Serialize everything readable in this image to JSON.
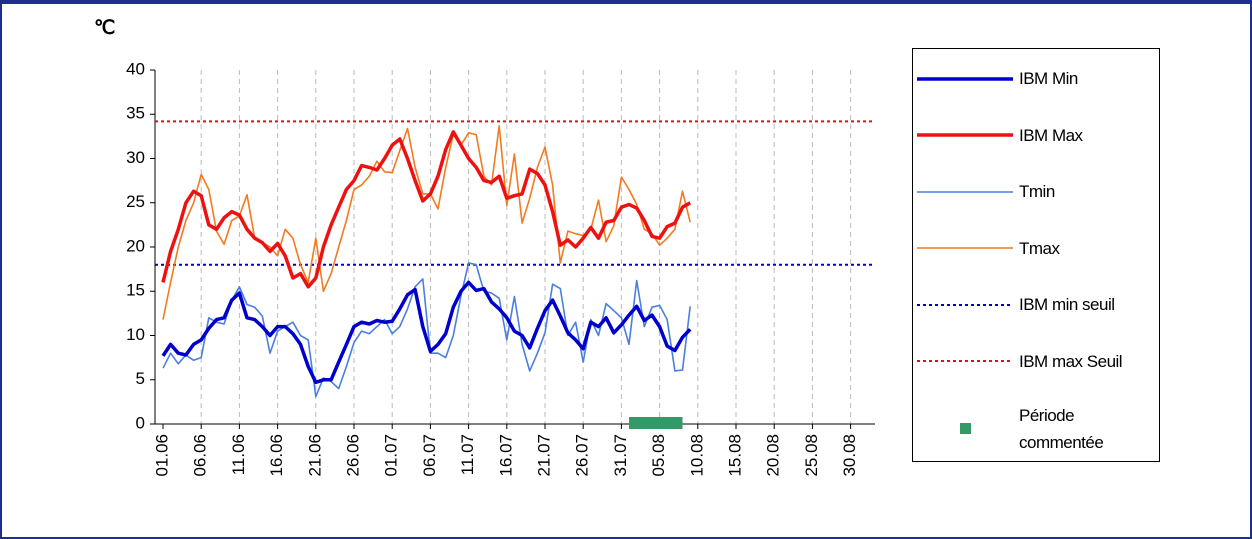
{
  "chart_data": {
    "type": "line",
    "y_label": "℃",
    "x": [
      "01.06",
      "02.06",
      "03.06",
      "04.06",
      "05.06",
      "06.06",
      "07.06",
      "08.06",
      "09.06",
      "10.06",
      "11.06",
      "12.06",
      "13.06",
      "14.06",
      "15.06",
      "16.06",
      "17.06",
      "18.06",
      "19.06",
      "20.06",
      "21.06",
      "22.06",
      "23.06",
      "24.06",
      "25.06",
      "26.06",
      "27.06",
      "28.06",
      "29.06",
      "30.06",
      "01.07",
      "02.07",
      "03.07",
      "04.07",
      "05.07",
      "06.07",
      "07.07",
      "08.07",
      "09.07",
      "10.07",
      "11.07",
      "12.07",
      "13.07",
      "14.07",
      "15.07",
      "16.07",
      "17.07",
      "18.07",
      "19.07",
      "20.07",
      "21.07",
      "22.07",
      "23.07",
      "24.07",
      "25.07",
      "26.07",
      "27.07",
      "28.07",
      "29.07",
      "30.07",
      "31.07",
      "01.08",
      "02.08",
      "03.08",
      "04.08",
      "05.08",
      "06.08",
      "07.08",
      "08.08",
      "09.08"
    ],
    "series": [
      {
        "name": "IBM Min",
        "color": "#0000cc",
        "style": "thick",
        "values": [
          7.7,
          9,
          8,
          7.8,
          9,
          9.5,
          10.8,
          11.8,
          12,
          14,
          14.8,
          12,
          11.8,
          11,
          10,
          11,
          11,
          10.2,
          9,
          6.5,
          4.7,
          5,
          5,
          7,
          9,
          11,
          11.5,
          11.3,
          11.7,
          11.5,
          11.6,
          13,
          14.6,
          15.2,
          11,
          8.2,
          9,
          10.2,
          13.2,
          15,
          16,
          15.1,
          15.3,
          13.8,
          13,
          12,
          10.5,
          10,
          8.6,
          10.8,
          12.8,
          14,
          12.2,
          10.3,
          9.5,
          8.5,
          11.5,
          11,
          12,
          10.3,
          11.2,
          12.3,
          13.3,
          11.7,
          12.3,
          11,
          8.8,
          8.3,
          9.8,
          10.7
        ]
      },
      {
        "name": "IBM Max",
        "color": "#ee1111",
        "style": "thick",
        "values": [
          16,
          19.5,
          22,
          25,
          26.3,
          25.8,
          22.5,
          22,
          23.3,
          24,
          23.6,
          22,
          21,
          20.5,
          19.5,
          20.4,
          19,
          16.5,
          17,
          15.5,
          16.5,
          20,
          22.5,
          24.5,
          26.5,
          27.5,
          29.2,
          29,
          28.7,
          30,
          31.5,
          32.2,
          30,
          27.5,
          25.2,
          26,
          28,
          31,
          33,
          31.5,
          30,
          29,
          27.5,
          27.3,
          28,
          25.5,
          25.8,
          26,
          28.8,
          28.3,
          27,
          24,
          20.2,
          20.8,
          20,
          21,
          22.2,
          21,
          22.8,
          23,
          24.5,
          24.8,
          24.4,
          23,
          21.2,
          21,
          22.3,
          22.7,
          24.5,
          25
        ]
      },
      {
        "name": "Tmin",
        "color": "#4a7fe0",
        "style": "thin",
        "values": [
          6.3,
          8,
          6.8,
          7.8,
          7.2,
          7.5,
          12,
          11.5,
          11.3,
          14,
          15.5,
          13.5,
          13.2,
          12.2,
          8,
          10.5,
          11,
          11.5,
          10,
          9.5,
          3.1,
          5.2,
          4.8,
          4,
          6.5,
          9.2,
          10.5,
          10.2,
          11,
          11.8,
          10.2,
          11,
          13,
          15.5,
          16.4,
          8,
          8,
          7.5,
          10,
          14.5,
          18.2,
          18,
          15,
          14.8,
          14.2,
          9.5,
          14.4,
          9,
          6,
          8,
          10.3,
          15.8,
          15.3,
          10,
          11.5,
          7,
          11.8,
          10,
          13.6,
          12.8,
          12,
          9,
          16.2,
          11,
          13.2,
          13.4,
          11.8,
          6,
          6.1,
          13.3
        ]
      },
      {
        "name": "Tmax",
        "color": "#f47a20",
        "style": "thin",
        "values": [
          11.8,
          16,
          20,
          23,
          25,
          28.2,
          26.5,
          21.8,
          20.3,
          23,
          23.5,
          25.9,
          21,
          20.5,
          20,
          19,
          22,
          21,
          18,
          16,
          21,
          15,
          17,
          20,
          23,
          26.5,
          27,
          28,
          29.7,
          28.5,
          28.4,
          30.9,
          33.4,
          29,
          26,
          26,
          24.3,
          29,
          32.7,
          31.5,
          32.9,
          32.7,
          28,
          27,
          33.7,
          24.7,
          30.5,
          22.7,
          25.5,
          29,
          31.3,
          27,
          18.2,
          21.8,
          21.5,
          21.3,
          22,
          25.3,
          20.6,
          22.4,
          27.9,
          26.5,
          24.8,
          22,
          21.5,
          20.2,
          21,
          22,
          26.3,
          22.8
        ]
      }
    ],
    "thresholds": [
      {
        "name": "IBM min seuil",
        "color": "#0000cc",
        "value": 18
      },
      {
        "name": "IBM max Seuil",
        "color": "#dd1111",
        "value": 34.2
      }
    ],
    "period": {
      "name": "Période commentée",
      "color": "#339966",
      "from": "01.08",
      "to": "08.08"
    },
    "ylim": [
      0,
      40
    ],
    "yticks": [
      0,
      5,
      10,
      15,
      20,
      25,
      30,
      35,
      40
    ],
    "xticks": [
      "01.06",
      "06.06",
      "11.06",
      "16.06",
      "21.06",
      "26.06",
      "01.07",
      "06.07",
      "11.07",
      "16.07",
      "21.07",
      "26.07",
      "31.07",
      "05.08",
      "10.08",
      "15.08",
      "20.08",
      "25.08",
      "30.08"
    ],
    "grid": true
  }
}
